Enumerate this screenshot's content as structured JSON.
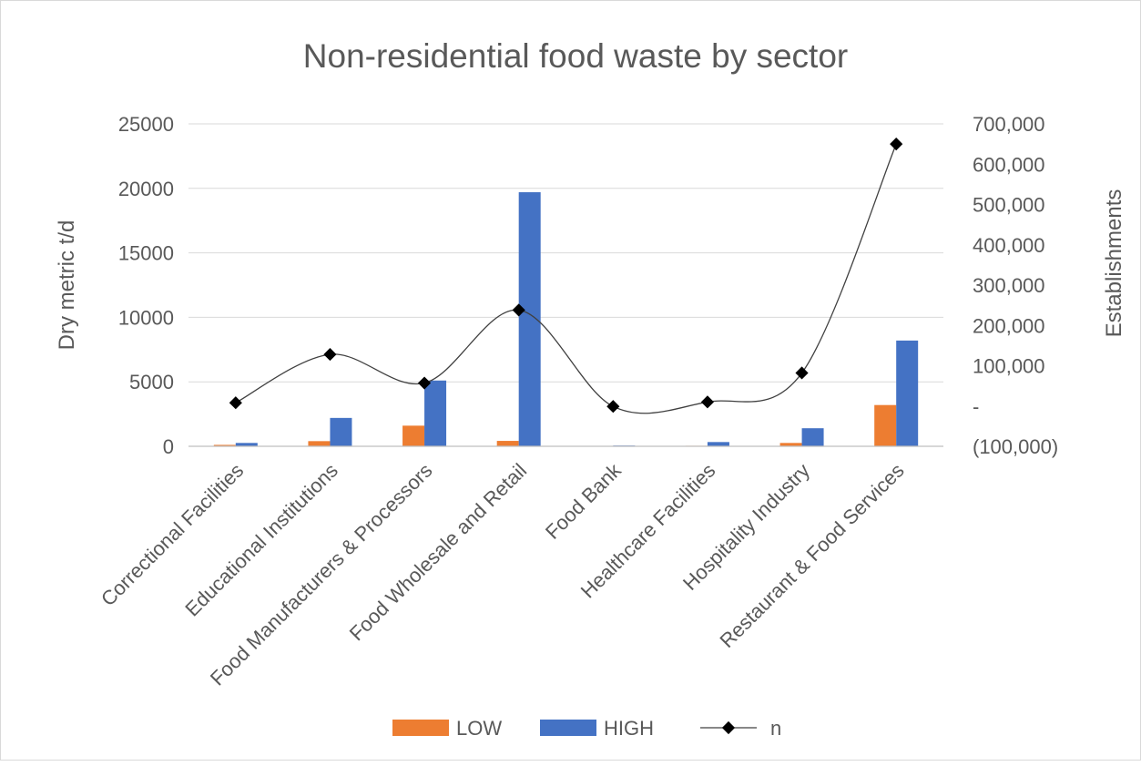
{
  "chart_data": {
    "type": "bar",
    "title": "Non-residential food waste by sector",
    "categories": [
      "Correctional Facilities",
      "Educational Institutions",
      "Food Manufacturers & Processors",
      "Food Wholesale and Retail",
      "Food Bank",
      "Healthcare Facilities",
      "Hospitality Industry",
      "Restaurant & Food Services"
    ],
    "series": [
      {
        "name": "LOW",
        "axis": "left",
        "type": "bar",
        "color": "#ED7D31",
        "values": [
          110,
          400,
          1600,
          420,
          30,
          40,
          260,
          3200
        ]
      },
      {
        "name": "HIGH",
        "axis": "left",
        "type": "bar",
        "color": "#4472C4",
        "values": [
          260,
          2200,
          5100,
          19700,
          60,
          330,
          1400,
          8200
        ]
      },
      {
        "name": "n",
        "axis": "right",
        "type": "line",
        "color": "#000000",
        "values": [
          8000,
          128000,
          57000,
          238000,
          -1000,
          10000,
          82000,
          650000
        ]
      }
    ],
    "ylabel": "Dry metric t/d",
    "ylim": [
      0,
      25000
    ],
    "yticks": [
      "0",
      "5000",
      "10000",
      "15000",
      "20000",
      "25000"
    ],
    "y2label": "Establishments",
    "y2lim": [
      -100000,
      700000
    ],
    "y2ticks": [
      "(100,000)",
      "-",
      "100,000",
      "200,000",
      "300,000",
      "400,000",
      "500,000",
      "600,000",
      "700,000"
    ],
    "grid": true,
    "legend": "bottom"
  }
}
